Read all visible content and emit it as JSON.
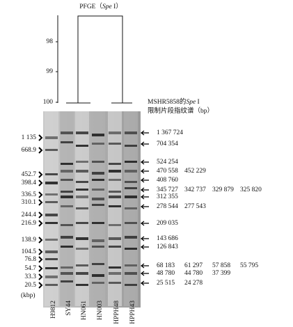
{
  "figure": {
    "title": {
      "prefix": "PFGE（",
      "italic": "Spe",
      "suffix": " I）"
    },
    "dendrogram_ticks": [
      "98",
      "99",
      "100"
    ],
    "lanes": [
      "H9812",
      "SY44",
      "HN061",
      "HN003",
      "HPPH48",
      "HPPH43"
    ],
    "markers": [
      "1 135",
      "668.9",
      "452.7",
      "398.4",
      "336.5",
      "310.1",
      "244.4",
      "216.9",
      "138.9",
      "104.5",
      "76.8",
      "54.7",
      "33.3",
      "20.5"
    ],
    "unit": "(kbp)",
    "fragment_header": {
      "line1_prefix": "MSHR5858的",
      "line1_italic": "Spe",
      "line1_suffix": " I",
      "line2": "限制片段指纹谱（bp）"
    },
    "fragments": [
      [
        "1 367 724"
      ],
      [
        "704 354"
      ],
      [
        "524 254"
      ],
      [
        "470 558",
        "452 229"
      ],
      [
        "408 760"
      ],
      [
        "345 727",
        "342 737",
        "329 879",
        "325 820"
      ],
      [
        "312 355"
      ],
      [
        "278 544",
        "277 543"
      ],
      [
        "209 035"
      ],
      [
        "143 686"
      ],
      [
        "126 843"
      ],
      [
        "68 183",
        "61 297",
        "57 858",
        "55 795"
      ],
      [
        "48 780",
        "44 780",
        "37 399"
      ],
      [
        "25 515",
        "24 278"
      ]
    ]
  }
}
